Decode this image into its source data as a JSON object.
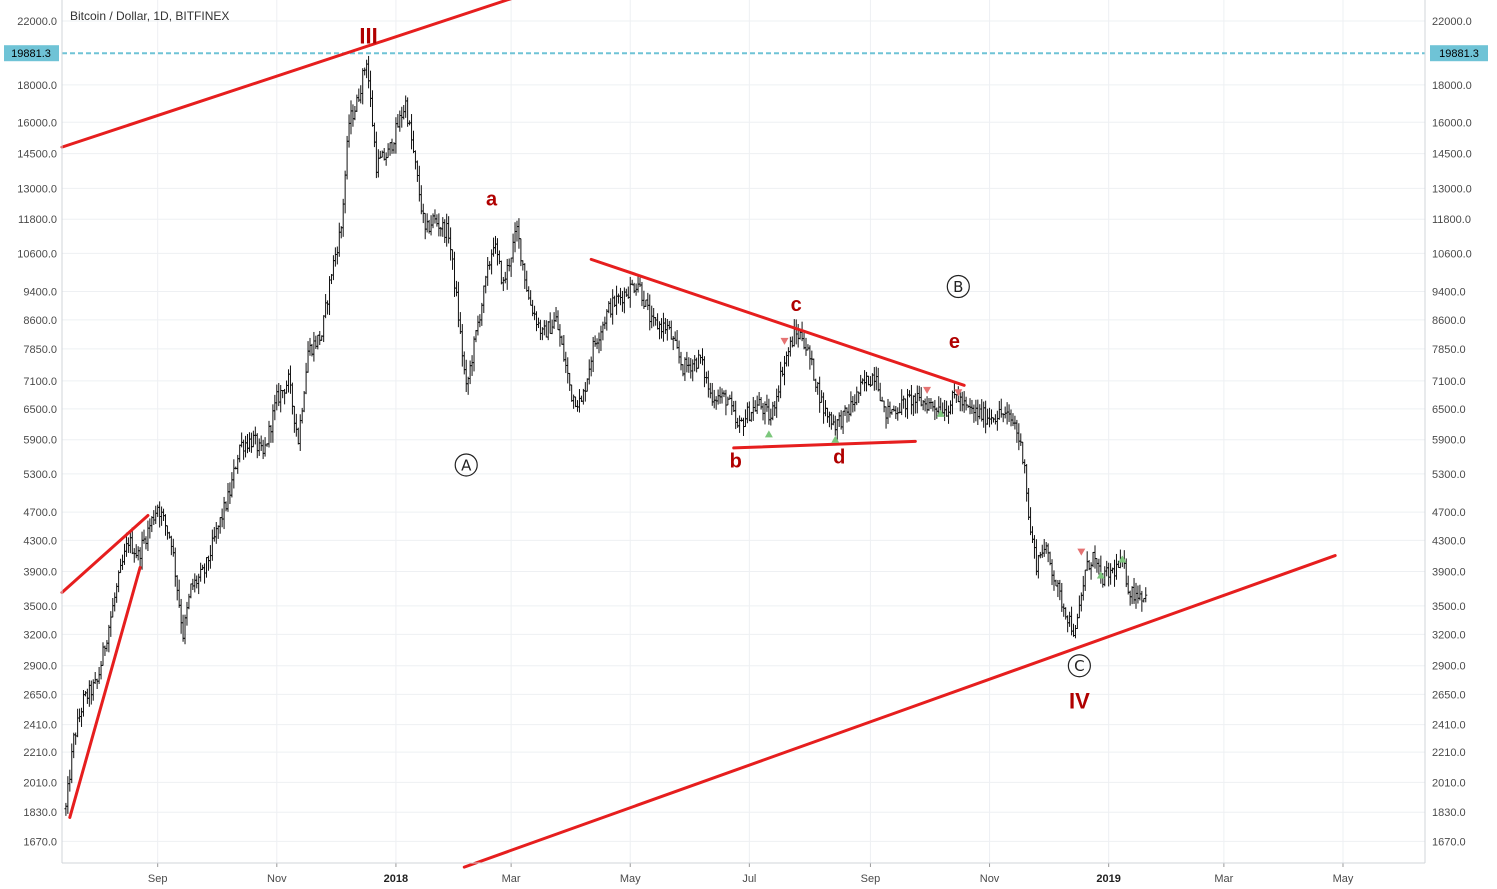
{
  "chart_data": {
    "type": "ohlc",
    "title": "Bitcoin / Dollar, 1D, BITFINEX",
    "symbol": "Bitcoin / Dollar",
    "interval": "1D",
    "exchange": "BITFINEX",
    "scale": "log",
    "grid": true,
    "y_ticks": [
      1670.0,
      1830.0,
      2010.0,
      2210.0,
      2410.0,
      2650.0,
      2900.0,
      3200.0,
      3500.0,
      3900.0,
      4300.0,
      4700.0,
      5300.0,
      5900.0,
      6500.0,
      7100.0,
      7850.0,
      8600.0,
      9400.0,
      10600.0,
      11800.0,
      13000.0,
      14500.0,
      16000.0,
      18000.0,
      22000.0
    ],
    "y_tick_labels": [
      "1670.0",
      "1830.0",
      "2010.0",
      "2210.0",
      "2410.0",
      "2650.0",
      "2900.0",
      "3200.0",
      "3500.0",
      "3900.0",
      "4300.0",
      "4700.0",
      "5300.0",
      "5900.0",
      "6500.0",
      "7100.0",
      "7850.0",
      "8600.0",
      "9400.0",
      "10600.0",
      "11800.0",
      "13000.0",
      "14500.0",
      "16000.0",
      "18000.0",
      "22000.0"
    ],
    "ylim": [
      1560,
      23500
    ],
    "x_range": [
      "2017-07-14",
      "2019-06-12"
    ],
    "x_ticks": [
      {
        "date": "2017-09-01",
        "label": "Sep",
        "bold": false
      },
      {
        "date": "2017-11-01",
        "label": "Nov",
        "bold": false
      },
      {
        "date": "2018-01-01",
        "label": "2018",
        "bold": true
      },
      {
        "date": "2018-03-01",
        "label": "Mar",
        "bold": false
      },
      {
        "date": "2018-05-01",
        "label": "May",
        "bold": false
      },
      {
        "date": "2018-07-01",
        "label": "Jul",
        "bold": false
      },
      {
        "date": "2018-09-01",
        "label": "Sep",
        "bold": false
      },
      {
        "date": "2018-11-01",
        "label": "Nov",
        "bold": false
      },
      {
        "date": "2019-01-01",
        "label": "2019",
        "bold": true
      },
      {
        "date": "2019-03-01",
        "label": "Mar",
        "bold": false
      },
      {
        "date": "2019-05-01",
        "label": "May",
        "bold": false
      }
    ],
    "price_line": {
      "value": 19881.3,
      "label": "19881.3",
      "color": "#6fc3d6"
    },
    "price_anchors": [
      [
        "2017-07-16",
        1850
      ],
      [
        "2017-07-20",
        2300
      ],
      [
        "2017-07-25",
        2600
      ],
      [
        "2017-08-01",
        2750
      ],
      [
        "2017-08-05",
        3100
      ],
      [
        "2017-08-12",
        3800
      ],
      [
        "2017-08-17",
        4300
      ],
      [
        "2017-08-22",
        4100
      ],
      [
        "2017-09-01",
        4800
      ],
      [
        "2017-09-08",
        4300
      ],
      [
        "2017-09-14",
        3200
      ],
      [
        "2017-09-18",
        3700
      ],
      [
        "2017-09-25",
        3900
      ],
      [
        "2017-10-01",
        4400
      ],
      [
        "2017-10-08",
        5000
      ],
      [
        "2017-10-13",
        5800
      ],
      [
        "2017-10-20",
        5900
      ],
      [
        "2017-10-25",
        5600
      ],
      [
        "2017-11-01",
        6700
      ],
      [
        "2017-11-07",
        7100
      ],
      [
        "2017-11-12",
        5900
      ],
      [
        "2017-11-17",
        7800
      ],
      [
        "2017-11-24",
        8200
      ],
      [
        "2017-11-29",
        10000
      ],
      [
        "2017-12-04",
        11500
      ],
      [
        "2017-12-08",
        16000
      ],
      [
        "2017-12-12",
        17000
      ],
      [
        "2017-12-17",
        19500
      ],
      [
        "2017-12-22",
        14000
      ],
      [
        "2017-12-28",
        14500
      ],
      [
        "2018-01-06",
        17000
      ],
      [
        "2018-01-10",
        14500
      ],
      [
        "2018-01-16",
        11300
      ],
      [
        "2018-01-20",
        11800
      ],
      [
        "2018-01-28",
        11300
      ],
      [
        "2018-02-01",
        9200
      ],
      [
        "2018-02-06",
        6900
      ],
      [
        "2018-02-12",
        8500
      ],
      [
        "2018-02-20",
        11000
      ],
      [
        "2018-02-25",
        9600
      ],
      [
        "2018-03-04",
        11400
      ],
      [
        "2018-03-10",
        9200
      ],
      [
        "2018-03-17",
        8200
      ],
      [
        "2018-03-24",
        8600
      ],
      [
        "2018-04-01",
        6800
      ],
      [
        "2018-04-06",
        6600
      ],
      [
        "2018-04-12",
        7900
      ],
      [
        "2018-04-20",
        8900
      ],
      [
        "2018-04-25",
        9200
      ],
      [
        "2018-05-05",
        9700
      ],
      [
        "2018-05-12",
        8500
      ],
      [
        "2018-05-20",
        8400
      ],
      [
        "2018-05-28",
        7400
      ],
      [
        "2018-06-06",
        7600
      ],
      [
        "2018-06-11",
        6800
      ],
      [
        "2018-06-20",
        6700
      ],
      [
        "2018-06-25",
        6100
      ],
      [
        "2018-06-30",
        6400
      ],
      [
        "2018-07-06",
        6600
      ],
      [
        "2018-07-12",
        6300
      ],
      [
        "2018-07-18",
        7400
      ],
      [
        "2018-07-24",
        8200
      ],
      [
        "2018-07-28",
        8200
      ],
      [
        "2018-08-01",
        7600
      ],
      [
        "2018-08-08",
        6500
      ],
      [
        "2018-08-14",
        6200
      ],
      [
        "2018-08-20",
        6400
      ],
      [
        "2018-08-28",
        7000
      ],
      [
        "2018-09-04",
        7300
      ],
      [
        "2018-09-08",
        6400
      ],
      [
        "2018-09-14",
        6500
      ],
      [
        "2018-09-22",
        6700
      ],
      [
        "2018-10-01",
        6600
      ],
      [
        "2018-10-10",
        6500
      ],
      [
        "2018-10-15",
        6800
      ],
      [
        "2018-10-20",
        6500
      ],
      [
        "2018-10-30",
        6350
      ],
      [
        "2018-11-08",
        6400
      ],
      [
        "2018-11-14",
        6200
      ],
      [
        "2018-11-19",
        5500
      ],
      [
        "2018-11-21",
        4600
      ],
      [
        "2018-11-25",
        4000
      ],
      [
        "2018-11-28",
        4200
      ],
      [
        "2018-12-01",
        4100
      ],
      [
        "2018-12-07",
        3600
      ],
      [
        "2018-12-15",
        3200
      ],
      [
        "2018-12-20",
        3900
      ],
      [
        "2018-12-24",
        4100
      ],
      [
        "2018-12-28",
        3800
      ],
      [
        "2019-01-03",
        3900
      ],
      [
        "2019-01-08",
        4000
      ],
      [
        "2019-01-12",
        3650
      ],
      [
        "2019-01-16",
        3650
      ],
      [
        "2019-01-20",
        3600
      ]
    ],
    "trend_lines": [
      {
        "name": "wave-iii-channel-top",
        "from": [
          "2017-07-14",
          14800
        ],
        "to": [
          "2018-03-01",
          23600
        ]
      },
      {
        "name": "wave-i-left-line",
        "from": [
          "2017-07-14",
          3650
        ],
        "to": [
          "2017-08-27",
          4650
        ]
      },
      {
        "name": "wave-i-right-line",
        "from": [
          "2017-07-18",
          1800
        ],
        "to": [
          "2017-08-23",
          3950
        ]
      },
      {
        "name": "triangle-upper-line",
        "from": [
          "2018-04-11",
          10400
        ],
        "to": [
          "2018-10-19",
          7000
        ]
      },
      {
        "name": "triangle-lower-line",
        "from": [
          "2018-06-23",
          5750
        ],
        "to": [
          "2018-09-24",
          5870
        ]
      },
      {
        "name": "support-line-iv",
        "from": [
          "2018-02-05",
          1540
        ],
        "to": [
          "2019-04-27",
          4100
        ]
      }
    ],
    "annotations": [
      {
        "text": "III",
        "style": "red",
        "date": "2017-12-18",
        "y": 21000
      },
      {
        "text": "a",
        "style": "red",
        "date": "2018-02-19",
        "y": 12600
      },
      {
        "text": "c",
        "style": "red",
        "date": "2018-07-25",
        "y": 9050
      },
      {
        "text": "e",
        "style": "red",
        "date": "2018-10-14",
        "y": 8050
      },
      {
        "text": "b",
        "style": "red",
        "date": "2018-06-24",
        "y": 5530
      },
      {
        "text": "d",
        "style": "red",
        "date": "2018-08-16",
        "y": 5600
      },
      {
        "text": "IV",
        "style": "red",
        "date": "2018-12-17",
        "y": 2600
      },
      {
        "text": "A",
        "style": "circled",
        "date": "2018-02-06",
        "y": 5450
      },
      {
        "text": "B",
        "style": "circled",
        "date": "2018-10-16",
        "y": 9550
      },
      {
        "text": "C",
        "style": "circled",
        "date": "2018-12-17",
        "y": 2900
      }
    ],
    "markers": [
      {
        "type": "down",
        "date": "2018-07-19",
        "y": 8050
      },
      {
        "type": "up",
        "date": "2018-07-11",
        "y": 6000
      },
      {
        "type": "up",
        "date": "2018-08-14",
        "y": 5900
      },
      {
        "type": "down",
        "date": "2018-09-30",
        "y": 6900
      },
      {
        "type": "up",
        "date": "2018-10-07",
        "y": 6400
      },
      {
        "type": "down",
        "date": "2018-10-16",
        "y": 6850
      },
      {
        "type": "down",
        "date": "2018-12-18",
        "y": 4150
      },
      {
        "type": "up",
        "date": "2018-12-28",
        "y": 3850
      },
      {
        "type": "up",
        "date": "2019-01-08",
        "y": 4050
      }
    ],
    "colors": {
      "candle": "#111111",
      "trend": "#e61e1e",
      "wave_label": "#b00000",
      "grid": "#eef0f3",
      "price_line": "#6fc3d6",
      "marker_up": "#7cc77c",
      "marker_down": "#e57373"
    }
  }
}
